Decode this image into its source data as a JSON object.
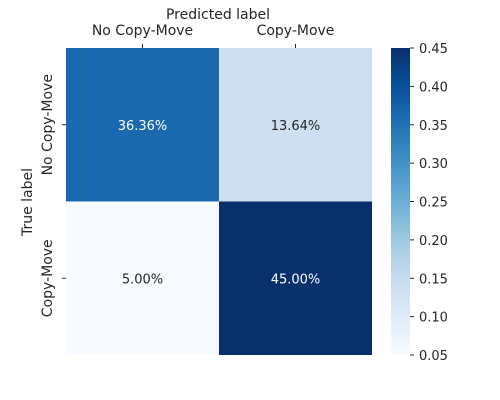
{
  "chart_data": {
    "type": "heatmap",
    "xlabel": "Predicted label",
    "ylabel": "True label",
    "x_categories": [
      "No Copy-Move",
      "Copy-Move"
    ],
    "y_categories": [
      "No Copy-Move",
      "Copy-Move"
    ],
    "values": [
      [
        0.3636,
        0.1364
      ],
      [
        0.05,
        0.45
      ]
    ],
    "cell_labels": [
      [
        "36.36%",
        "13.64%"
      ],
      [
        "5.00%",
        "45.00%"
      ]
    ],
    "colorbar": {
      "range": [
        0.05,
        0.45
      ],
      "ticks": [
        "0.05",
        "0.10",
        "0.15",
        "0.20",
        "0.25",
        "0.30",
        "0.35",
        "0.40",
        "0.45"
      ],
      "colormap": "Blues",
      "color_low": "#f7fbff",
      "color_high": "#08306b"
    },
    "x_axis_position": "top",
    "grid": false
  }
}
